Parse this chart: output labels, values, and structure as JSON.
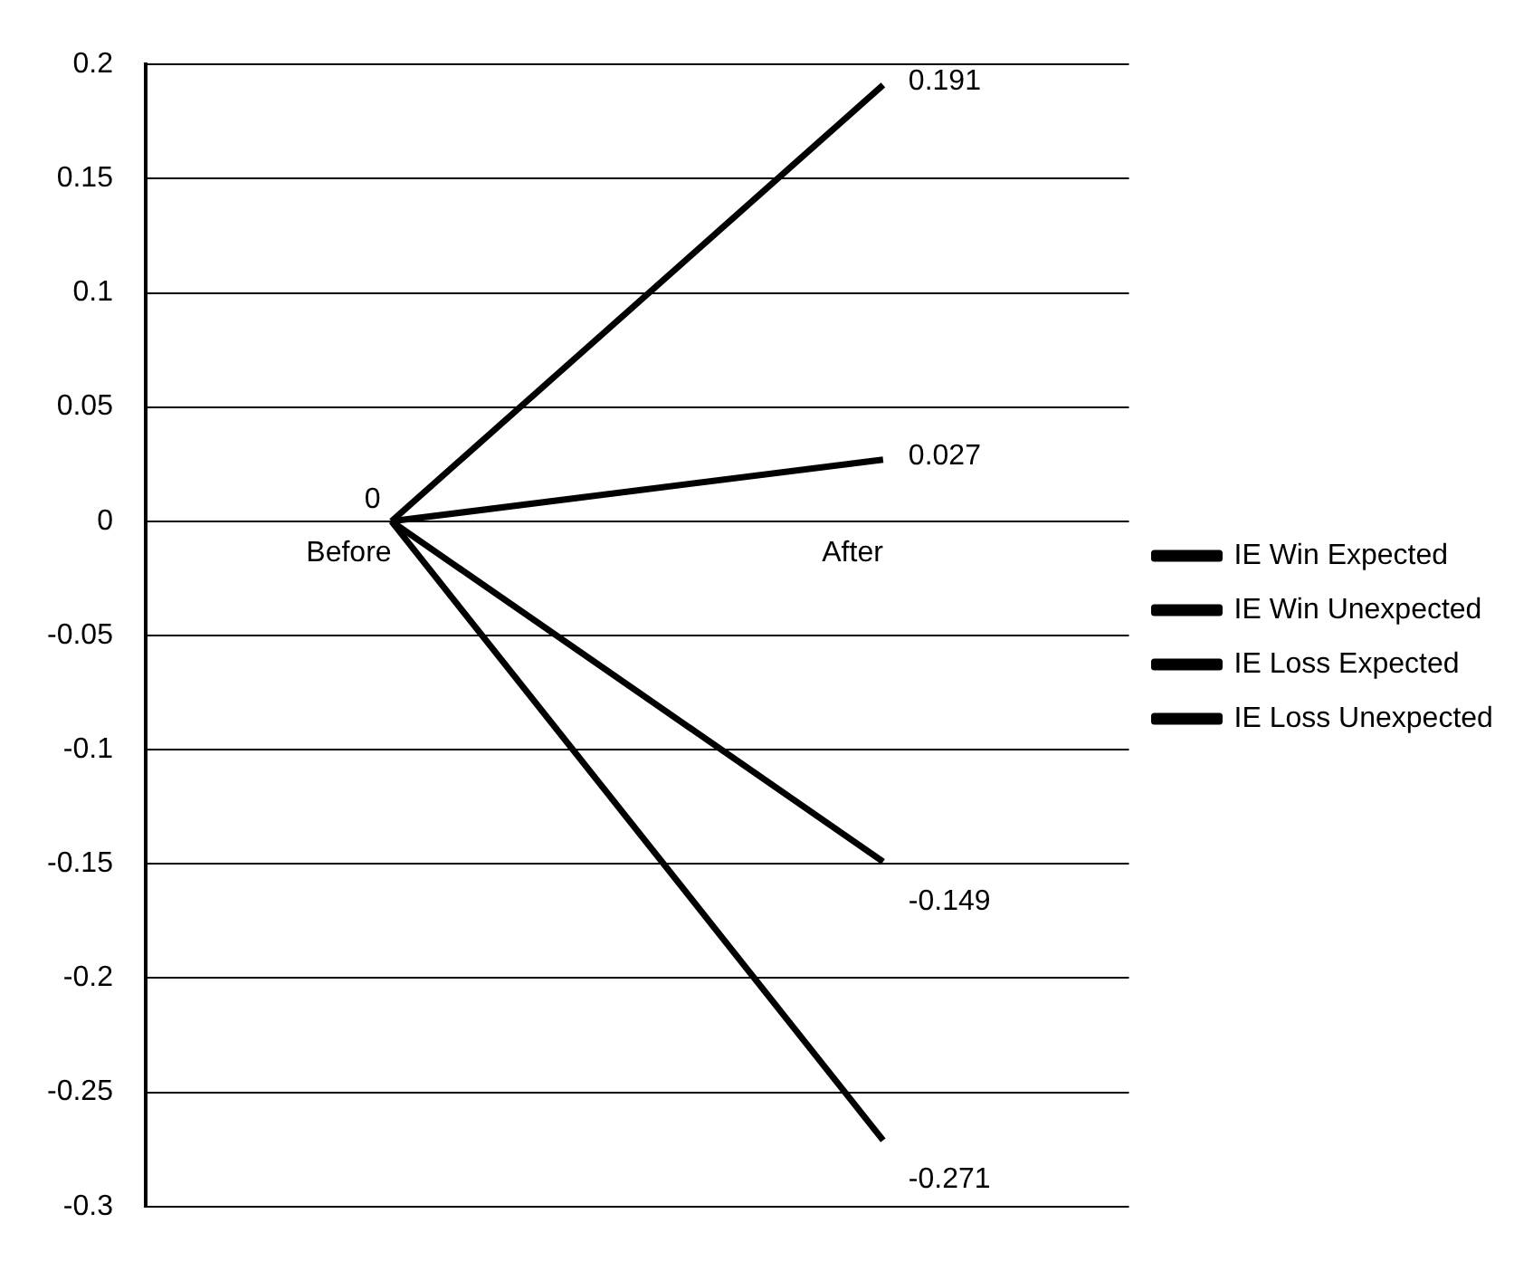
{
  "chart_data": {
    "type": "line",
    "categories": [
      "Before",
      "After"
    ],
    "series": [
      {
        "name": "IE Win Expected",
        "color": "#000000",
        "values": [
          0,
          0.027
        ],
        "value_labels": [
          null,
          "0.027"
        ]
      },
      {
        "name": "IE Win Unexpected",
        "color": "#000000",
        "values": [
          0,
          0.191
        ],
        "value_labels": [
          "0",
          "0.191"
        ]
      },
      {
        "name": "IE Loss Expected",
        "color": "#000000",
        "values": [
          0,
          -0.149
        ],
        "value_labels": [
          null,
          "-0.149"
        ]
      },
      {
        "name": "IE Loss Unexpected",
        "color": "#000000",
        "values": [
          0,
          -0.271
        ],
        "value_labels": [
          null,
          "-0.271"
        ]
      }
    ],
    "ylim": [
      -0.3,
      0.2
    ],
    "yticks": [
      -0.3,
      -0.25,
      -0.2,
      -0.15,
      -0.1,
      -0.05,
      0,
      0.05,
      0.1,
      0.15,
      0.2
    ],
    "grid": "y",
    "legend": "right",
    "marker": "none",
    "line_style": "solid"
  }
}
